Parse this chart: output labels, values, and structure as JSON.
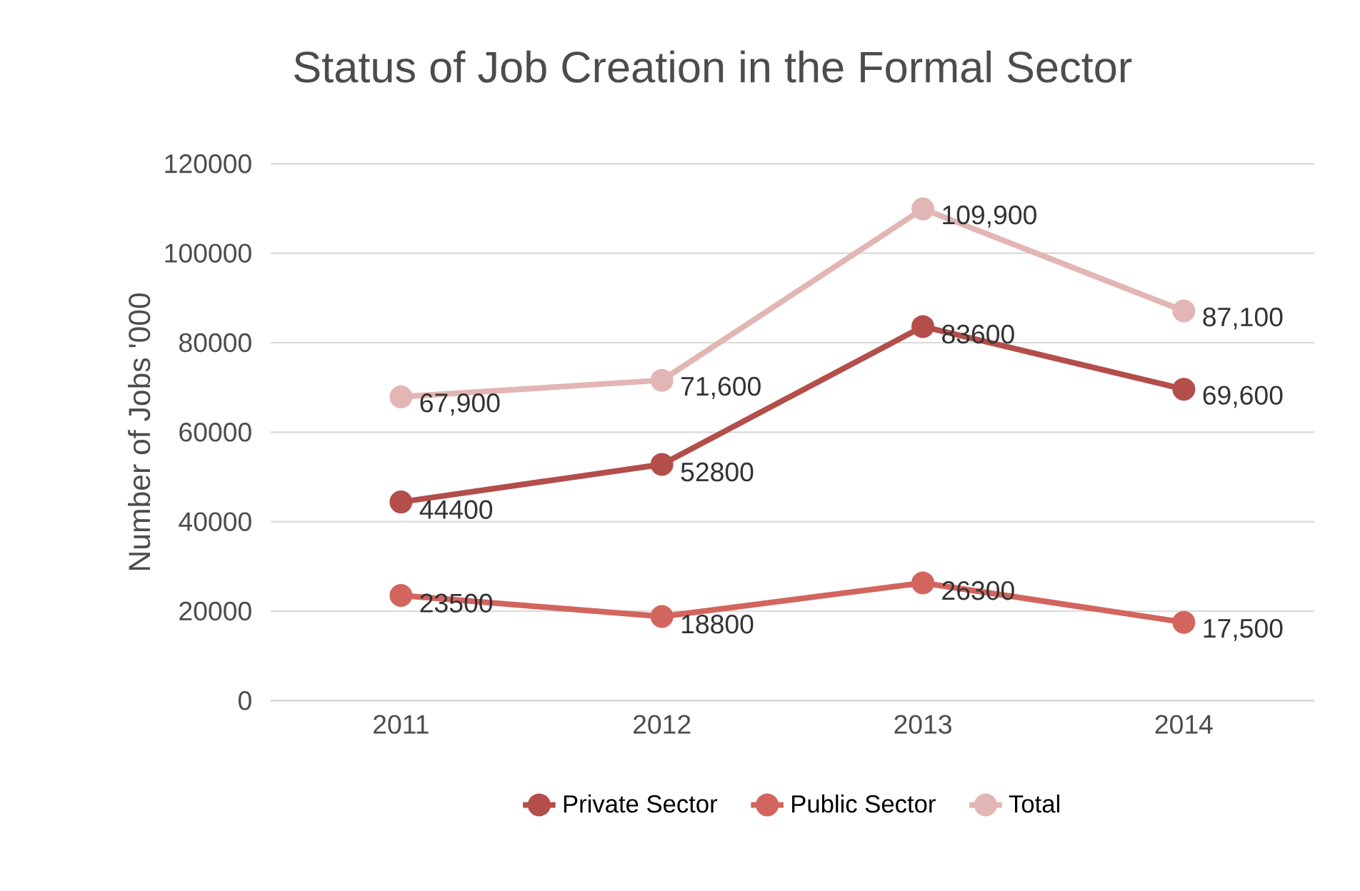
{
  "chart_data": {
    "type": "line",
    "title": "Status of Job Creation in the Formal Sector",
    "ylabel": "Number of Jobs '000",
    "categories": [
      "2011",
      "2012",
      "2013",
      "2014"
    ],
    "series": [
      {
        "name": "Private Sector",
        "color": "#b34e4a",
        "values": [
          44400,
          52800,
          83600,
          69600
        ],
        "value_labels": [
          "44400",
          "52800",
          "83600",
          "69,600"
        ]
      },
      {
        "name": "Public Sector",
        "color": "#d2655e",
        "values": [
          23500,
          18800,
          26300,
          17500
        ],
        "value_labels": [
          "23500",
          "18800",
          "26300",
          "17,500"
        ]
      },
      {
        "name": "Total",
        "color": "#e2b6b4",
        "values": [
          67900,
          71600,
          109900,
          87100
        ],
        "value_labels": [
          "67,900",
          "71,600",
          "109,900",
          "87,100"
        ]
      }
    ],
    "ylim": [
      0,
      120000
    ],
    "yticks": [
      0,
      20000,
      40000,
      60000,
      80000,
      100000,
      120000
    ],
    "grid": "y",
    "legend": "bottom",
    "marker": "circle",
    "line_style": "solid"
  }
}
